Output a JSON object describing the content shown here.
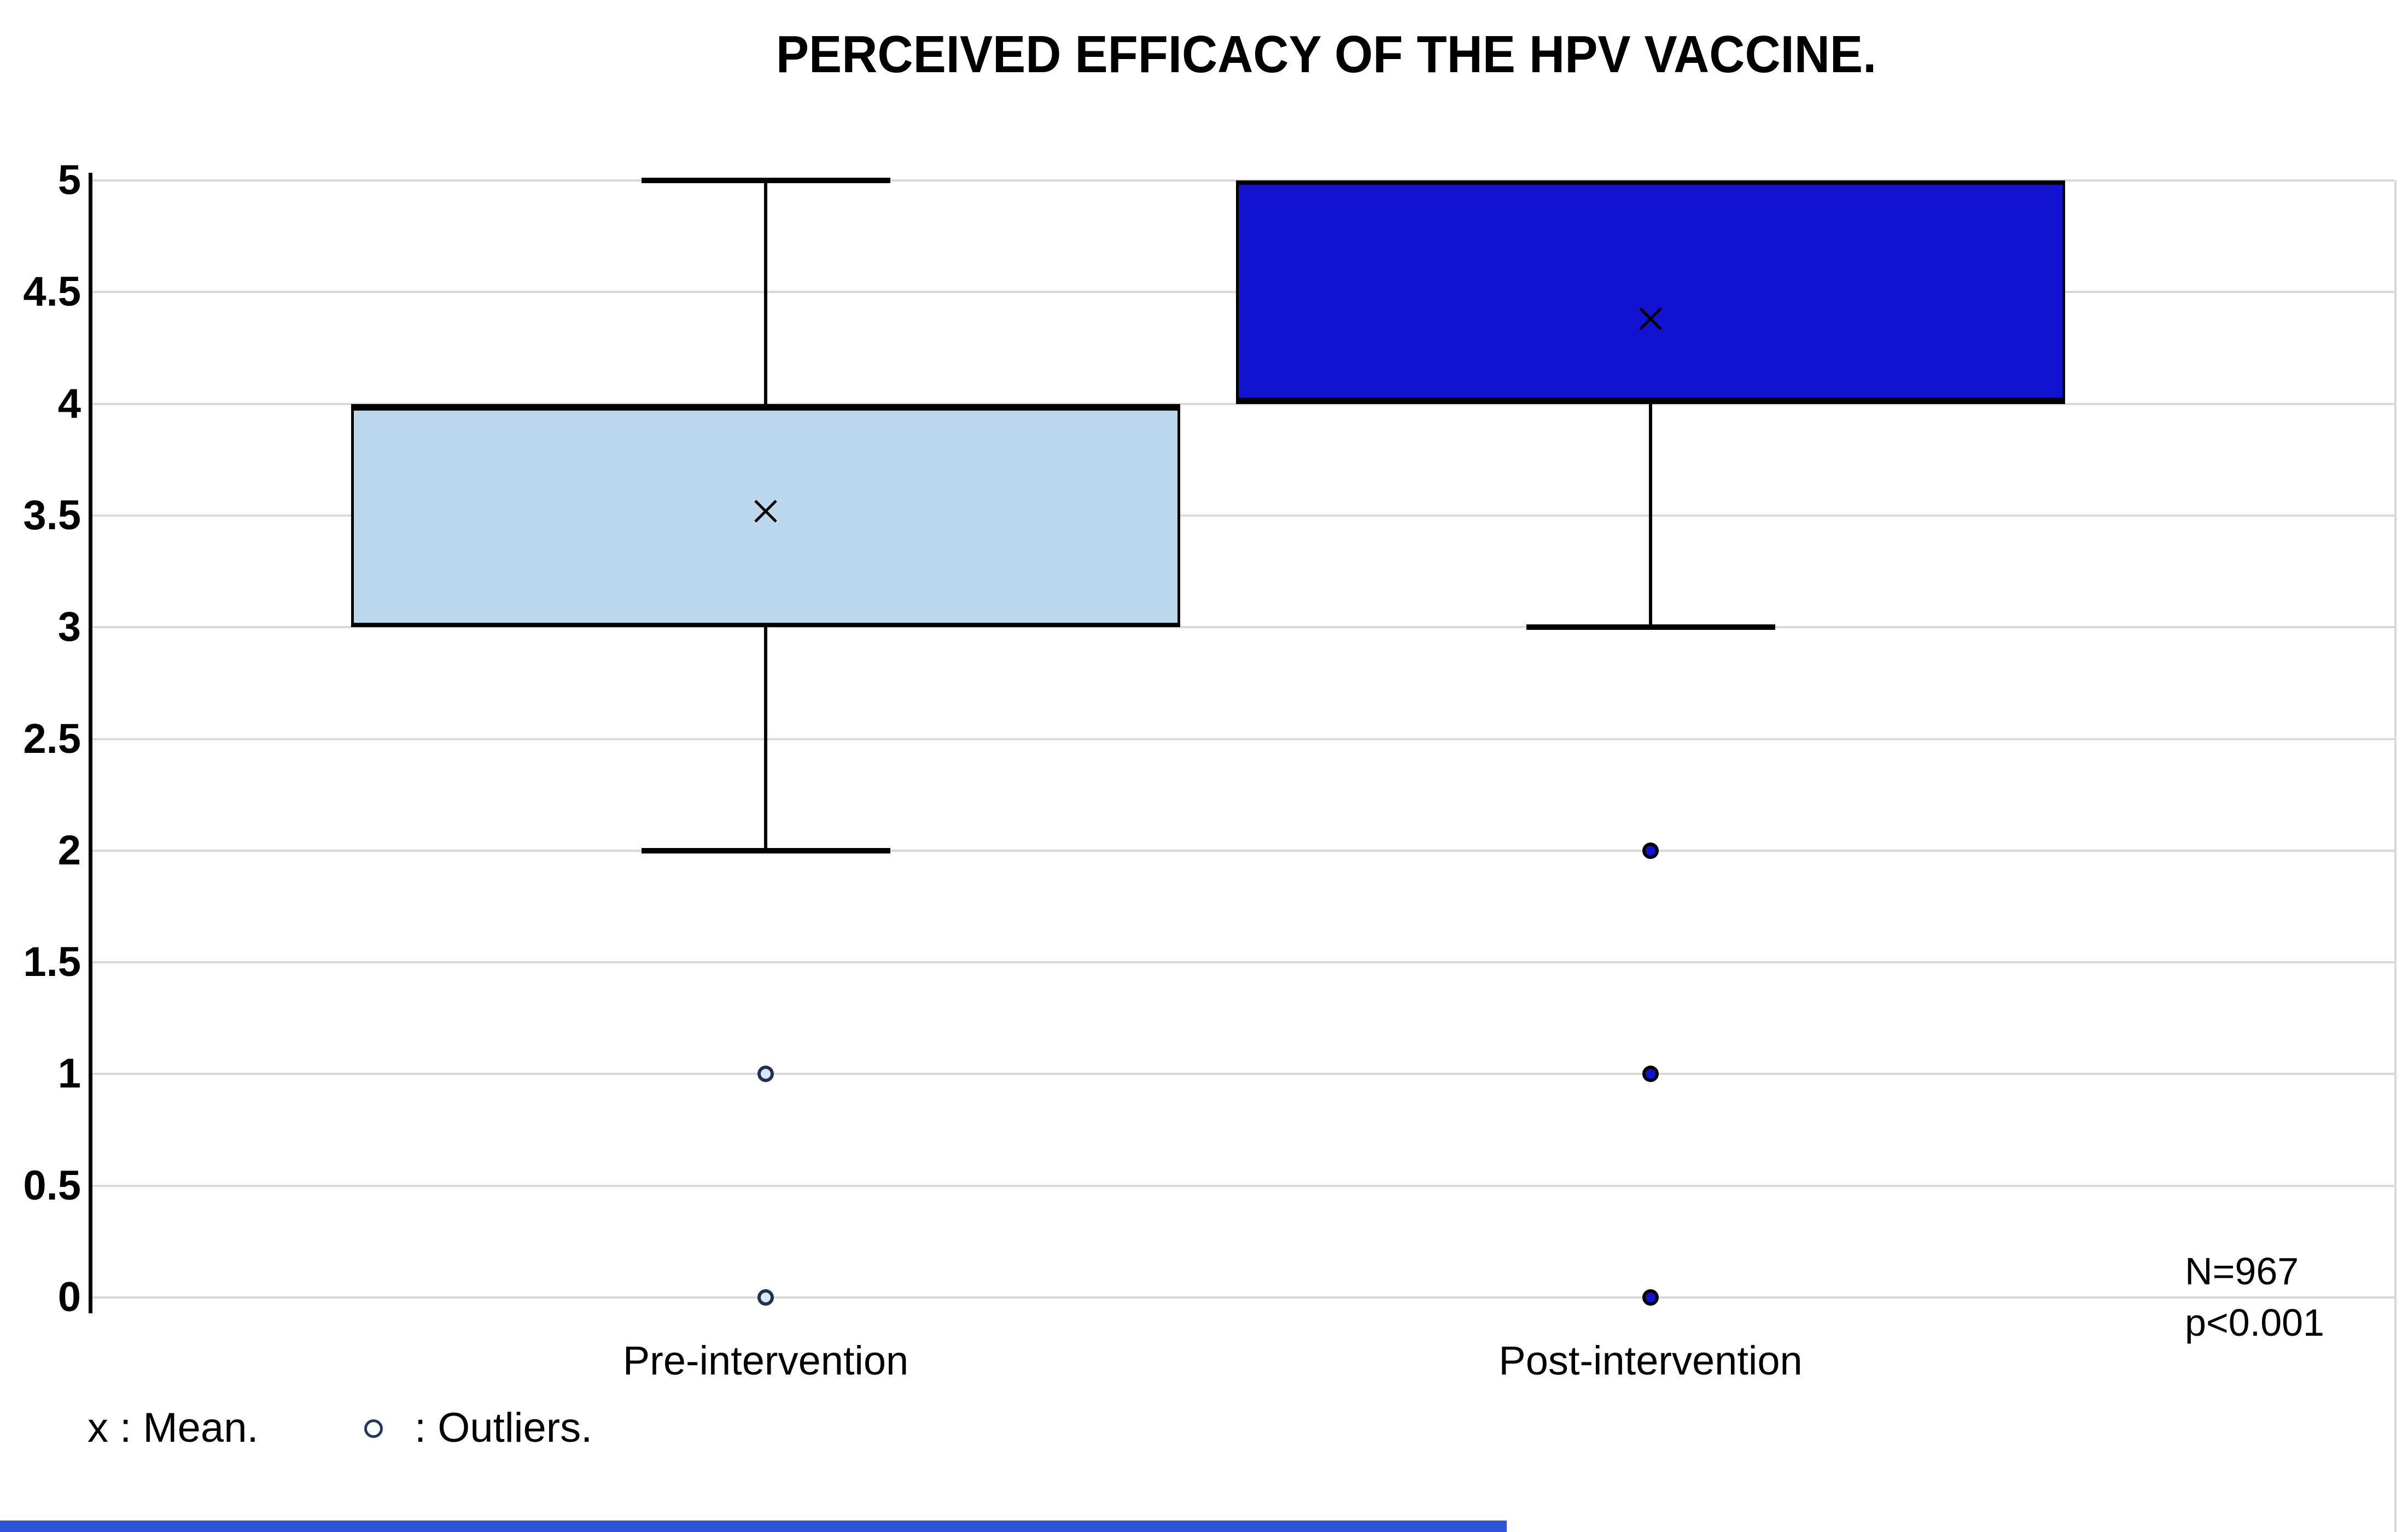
{
  "chart_data": {
    "type": "box",
    "title": "PERCEIVED EFFICACY OF THE HPV VACCINE.",
    "ylim": [
      0,
      5
    ],
    "yticks": [
      5,
      4.5,
      4,
      3.5,
      3,
      2.5,
      2,
      1.5,
      1,
      0.5,
      0
    ],
    "grid": true,
    "legend_position": "bottom-left",
    "categories": [
      "Pre-intervention",
      "Post-intervention"
    ],
    "series": [
      {
        "name": "Pre-intervention",
        "whisker_low": 2,
        "q1": 3,
        "median": 4,
        "q3": 4,
        "whisker_high": 5,
        "mean": 3.52,
        "outliers": [
          1,
          0
        ],
        "box_color": "#BDD7EE",
        "outlier_fill": "#D8E8F8",
        "outlier_ring": "#1F3250"
      },
      {
        "name": "Post-intervention",
        "whisker_low": 3,
        "q1": 4,
        "median": 4,
        "q3": 5,
        "whisker_high": 5,
        "mean": 4.38,
        "outliers": [
          2,
          1,
          0
        ],
        "box_color": "#1113CE",
        "outlier_fill": "#1113CE",
        "outlier_ring": "#000000"
      }
    ],
    "annotations": [
      "N=967",
      "p<0.001"
    ],
    "legend": {
      "mean_label": "x : Mean.",
      "outliers_label": ": Outliers."
    }
  },
  "colors": {
    "gridline": "#D9D9D9",
    "axis": "#000000",
    "background": "#FFFFFF",
    "mean_marker": "#000000",
    "bottom_bar": "#2E55D6"
  }
}
